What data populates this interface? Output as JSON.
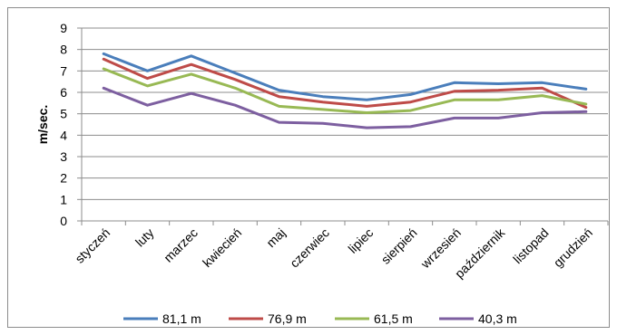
{
  "chart_data": {
    "type": "line",
    "title": "",
    "xlabel": "",
    "ylabel": "m/sec.",
    "ylim": [
      0,
      9
    ],
    "yticks": [
      "0",
      "1",
      "2",
      "3",
      "4",
      "5",
      "6",
      "7",
      "8",
      "9"
    ],
    "grid": true,
    "legend_position": "bottom",
    "categories": [
      "styczeń",
      "luty",
      "marzec",
      "kwiecień",
      "maj",
      "czerwiec",
      "lipiec",
      "sierpień",
      "wrzesień",
      "październik",
      "listopad",
      "grudzień"
    ],
    "series": [
      {
        "name": "81,1 m",
        "color": "#4a7ebb",
        "values": [
          7.8,
          7.0,
          7.7,
          6.9,
          6.1,
          5.8,
          5.65,
          5.9,
          6.45,
          6.4,
          6.45,
          6.15
        ]
      },
      {
        "name": "76,9 m",
        "color": "#be4b48",
        "values": [
          7.55,
          6.65,
          7.3,
          6.6,
          5.8,
          5.55,
          5.35,
          5.55,
          6.05,
          6.1,
          6.2,
          5.3
        ]
      },
      {
        "name": "61,5 m",
        "color": "#98b954",
        "values": [
          7.1,
          6.3,
          6.85,
          6.2,
          5.35,
          5.2,
          5.05,
          5.15,
          5.65,
          5.65,
          5.85,
          5.45
        ]
      },
      {
        "name": "40,3 m",
        "color": "#7d5fa0",
        "values": [
          6.2,
          5.4,
          5.95,
          5.4,
          4.6,
          4.55,
          4.35,
          4.4,
          4.8,
          4.8,
          5.05,
          5.1
        ]
      }
    ]
  }
}
